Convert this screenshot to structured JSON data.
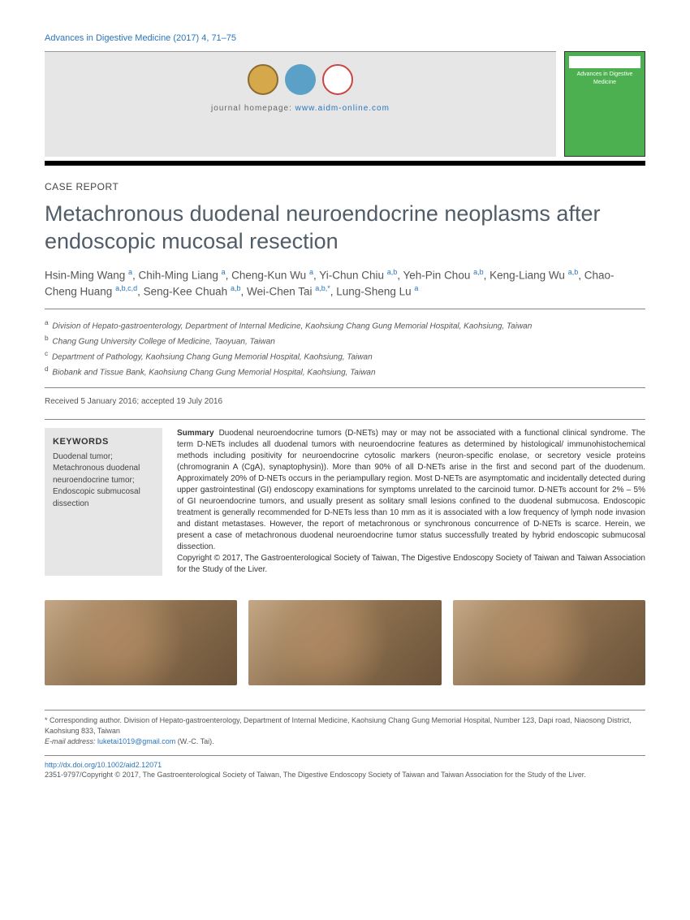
{
  "header": {
    "citation": "Advances in Digestive Medicine (2017) 4, 71–75",
    "homepage_label": "journal homepage:",
    "homepage_url": "www.aidm-online.com",
    "cover_title": "Advances in Digestive Medicine"
  },
  "article": {
    "section": "CASE REPORT",
    "title": "Metachronous duodenal neuroendocrine neoplasms after endoscopic mucosal resection"
  },
  "authors_html": "Hsin-Ming Wang <sup>a</sup>, Chih-Ming Liang <sup>a</sup>, Cheng-Kun Wu <sup>a</sup>, Yi-Chun Chiu <sup>a,b</sup>, Yeh-Pin Chou <sup>a,b</sup>, Keng-Liang Wu <sup>a,b</sup>, Chao-Cheng Huang <sup>a,b,c,d</sup>, Seng-Kee Chuah <sup>a,b</sup>, Wei-Chen Tai <sup>a,b,*</sup>, Lung-Sheng Lu <sup>a</sup>",
  "affiliations": [
    {
      "sup": "a",
      "text": "Division of Hepato-gastroenterology, Department of Internal Medicine, Kaohsiung Chang Gung Memorial Hospital, Kaohsiung, Taiwan"
    },
    {
      "sup": "b",
      "text": "Chang Gung University College of Medicine, Taoyuan, Taiwan"
    },
    {
      "sup": "c",
      "text": "Department of Pathology, Kaohsiung Chang Gung Memorial Hospital, Kaohsiung, Taiwan"
    },
    {
      "sup": "d",
      "text": "Biobank and Tissue Bank, Kaohsiung Chang Gung Memorial Hospital, Kaohsiung, Taiwan"
    }
  ],
  "dates": "Received 5 January 2016; accepted 19 July 2016",
  "keywords": {
    "heading": "KEYWORDS",
    "items": "Duodenal tumor;\nMetachronous duodenal neuroendocrine tumor;\nEndoscopic submucosal dissection"
  },
  "summary": {
    "label": "Summary",
    "body": "Duodenal neuroendocrine tumors (D-NETs) may or may not be associated with a functional clinical syndrome. The term D-NETs includes all duodenal tumors with neuroendocrine features as determined by histological/ immunohistochemical methods including positivity for neuroendocrine cytosolic markers (neuron-specific enolase, or secretory vesicle proteins (chromogranin A (CgA), synaptophysin)). More than 90% of all D-NETs arise in the first and second part of the duodenum. Approximately 20% of D-NETs occurs in the periampullary region. Most D-NETs are asymptomatic and incidentally detected during upper gastrointestinal (GI) endoscopy examinations for symptoms unrelated to the carcinoid tumor. D-NETs account for 2% – 5% of GI neuroendocrine tumors, and usually present as solitary small lesions confined to the duodenal submucosa. Endoscopic treatment is generally recommended for D-NETs less than 10 mm as it is associated with a low frequency of lymph node invasion and distant metastases. However, the report of metachronous or synchronous concurrence of D-NETs is scarce. Herein, we present a case of metachronous duodenal neuroendocrine tumor status successfully treated by hybrid endoscopic submucosal dissection.",
    "copyright": "Copyright © 2017, The Gastroenterological Society of Taiwan, The Digestive Endoscopy Society of Taiwan and Taiwan Association for the Study of the Liver."
  },
  "footnotes": {
    "corresponding": "* Corresponding author. Division of Hepato-gastroenterology, Department of Internal Medicine, Kaohsiung Chang Gung Memorial Hospital, Number 123, Dapi road, Niaosong District, Kaohsiung 833, Taiwan",
    "email_label": "E-mail address:",
    "email": "luketai1019@gmail.com",
    "email_suffix": " (W.-C. Tai)."
  },
  "footer": {
    "doi": "http://dx.doi.org/10.1002/aid2.12071",
    "issn": "2351-9797/Copyright © 2017, The Gastroenterological Society of Taiwan, The Digestive Endoscopy Society of Taiwan and Taiwan Association for the Study of the Liver."
  }
}
